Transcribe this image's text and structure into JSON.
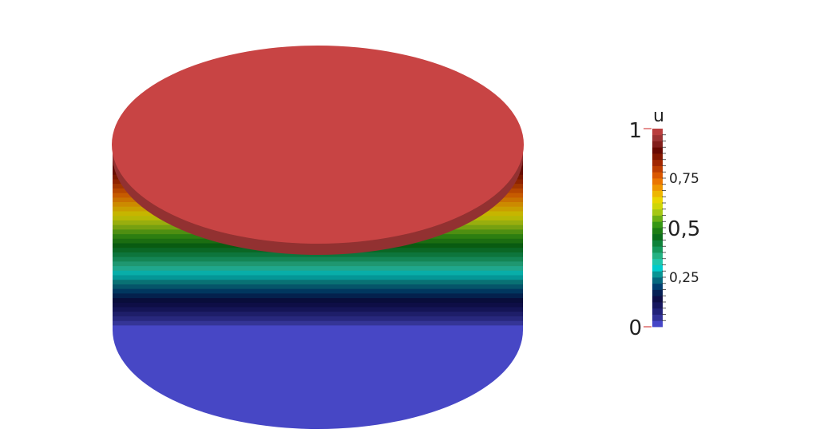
{
  "legend": {
    "title": "u",
    "labels": {
      "max": "1",
      "min": "0",
      "mid": "0,5",
      "upper_quarter": "0,75",
      "lower_quarter": "0,25"
    },
    "range": [
      0,
      1
    ],
    "num_bands": 32
  },
  "colormap": {
    "stops": [
      {
        "value": 0.0,
        "color": "#5353e8"
      },
      {
        "value": 0.03,
        "color": "#3a3aa8"
      },
      {
        "value": 0.09,
        "color": "#1c1c6e"
      },
      {
        "value": 0.15,
        "color": "#0b0b40"
      },
      {
        "value": 0.2,
        "color": "#003a6e"
      },
      {
        "value": 0.26,
        "color": "#0b8a8a"
      },
      {
        "value": 0.3,
        "color": "#00d0d0"
      },
      {
        "value": 0.34,
        "color": "#2ec29c"
      },
      {
        "value": 0.4,
        "color": "#109050"
      },
      {
        "value": 0.46,
        "color": "#0a6a14"
      },
      {
        "value": 0.52,
        "color": "#3a9a14"
      },
      {
        "value": 0.58,
        "color": "#a8c814"
      },
      {
        "value": 0.63,
        "color": "#e8e000"
      },
      {
        "value": 0.69,
        "color": "#f0a400"
      },
      {
        "value": 0.75,
        "color": "#e86400"
      },
      {
        "value": 0.82,
        "color": "#a82a00"
      },
      {
        "value": 0.89,
        "color": "#680800"
      },
      {
        "value": 0.95,
        "color": "#983232"
      },
      {
        "value": 1.0,
        "color": "#c84444"
      }
    ]
  },
  "scene": {
    "object": "cylinder",
    "top_value": 1
  }
}
